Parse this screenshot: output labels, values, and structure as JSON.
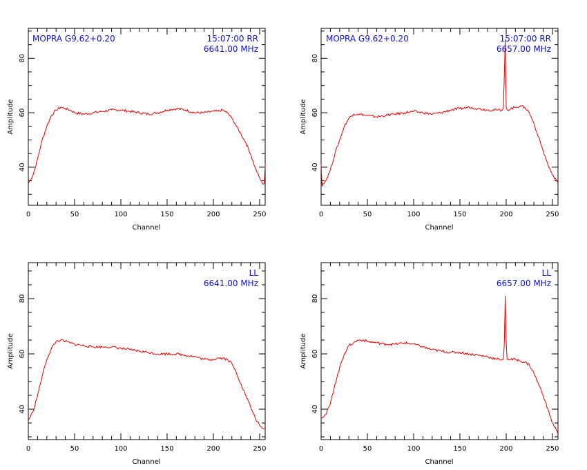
{
  "chart_data": [
    {
      "type": "line",
      "panel": "top-left",
      "xlabel": "Channel",
      "ylabel": "Amplitude",
      "xlim": [
        0,
        256
      ],
      "ylim": [
        26,
        91
      ],
      "xticks": [
        0,
        50,
        100,
        150,
        200,
        250
      ],
      "yticks": [
        40,
        60,
        80
      ],
      "annotations": {
        "source": "MOPRA G9.62+0.20",
        "time_pol": "15:07:00  RR",
        "freq": "6641.00 MHz"
      },
      "series": [
        {
          "color": "#e00000",
          "x": [
            0,
            5,
            10,
            15,
            20,
            25,
            30,
            35,
            40,
            45,
            50,
            60,
            70,
            80,
            90,
            100,
            110,
            120,
            130,
            140,
            150,
            160,
            170,
            180,
            190,
            200,
            205,
            210,
            215,
            220,
            225,
            230,
            235,
            240,
            245,
            250,
            253,
            255,
            256
          ],
          "y": [
            34,
            37,
            43,
            50,
            55,
            59,
            61,
            62,
            61.5,
            61,
            60,
            59.5,
            60,
            60.5,
            61,
            61,
            60.5,
            60,
            59.5,
            60,
            61,
            61.5,
            61,
            60,
            60,
            60.5,
            60.5,
            61,
            60,
            58,
            55,
            52,
            49,
            45,
            40,
            36,
            34,
            34,
            41
          ]
        }
      ]
    },
    {
      "type": "line",
      "panel": "top-right",
      "xlabel": "Channel",
      "ylabel": "Amplitude",
      "xlim": [
        0,
        256
      ],
      "ylim": [
        26,
        91
      ],
      "xticks": [
        0,
        50,
        100,
        150,
        200,
        250
      ],
      "yticks": [
        40,
        60,
        80
      ],
      "annotations": {
        "source": "MOPRA G9.62+0.20",
        "time_pol": "15:07:00  RR",
        "freq": "6657.00 MHz"
      },
      "series": [
        {
          "color": "#e00000",
          "x": [
            0,
            1,
            2,
            5,
            10,
            15,
            20,
            25,
            30,
            35,
            40,
            50,
            60,
            70,
            80,
            90,
            100,
            110,
            120,
            130,
            140,
            150,
            160,
            170,
            180,
            190,
            196,
            197,
            198,
            199,
            200,
            201,
            202,
            205,
            210,
            215,
            220,
            225,
            230,
            235,
            240,
            245,
            250,
            255,
            256
          ],
          "y": [
            41,
            33,
            34,
            35,
            39,
            45,
            50,
            55,
            58,
            59.5,
            59.5,
            59,
            58.5,
            59,
            59.5,
            60,
            60.5,
            60,
            59.5,
            60,
            61,
            61.5,
            62,
            61.5,
            61,
            61,
            61,
            62,
            74,
            87,
            62,
            61,
            61,
            61.5,
            62,
            62.5,
            62,
            60,
            56,
            51,
            46,
            41,
            37,
            35,
            34
          ]
        }
      ]
    },
    {
      "type": "line",
      "panel": "bottom-left",
      "xlabel": "Channel",
      "ylabel": "Amplitude",
      "xlim": [
        0,
        256
      ],
      "ylim": [
        29,
        93
      ],
      "xticks": [
        0,
        50,
        100,
        150,
        200,
        250
      ],
      "yticks": [
        40,
        60,
        80
      ],
      "annotations": {
        "time_pol": "LL",
        "freq": "6641.00 MHz"
      },
      "series": [
        {
          "color": "#e00000",
          "x": [
            0,
            5,
            10,
            15,
            20,
            25,
            30,
            35,
            40,
            45,
            50,
            60,
            70,
            80,
            90,
            100,
            110,
            120,
            130,
            140,
            150,
            160,
            170,
            180,
            190,
            200,
            205,
            210,
            215,
            220,
            225,
            230,
            235,
            240,
            245,
            250,
            253,
            255,
            256
          ],
          "y": [
            36,
            39,
            45,
            52,
            58,
            62,
            64.5,
            65,
            64.5,
            64,
            63.5,
            63,
            62.5,
            62.5,
            62.5,
            62,
            61.5,
            61,
            60.5,
            60,
            60,
            60,
            59.5,
            59,
            58,
            58,
            58.5,
            58.5,
            58,
            56.5,
            53,
            49,
            45,
            41,
            37,
            34,
            33,
            33,
            33
          ]
        }
      ]
    },
    {
      "type": "line",
      "panel": "bottom-right",
      "xlabel": "Channel",
      "ylabel": "Amplitude",
      "xlim": [
        0,
        256
      ],
      "ylim": [
        29,
        93
      ],
      "xticks": [
        0,
        50,
        100,
        150,
        200,
        250
      ],
      "yticks": [
        40,
        60,
        80
      ],
      "annotations": {
        "time_pol": "LL",
        "freq": "6657.00 MHz"
      },
      "series": [
        {
          "color": "#e00000",
          "x": [
            0,
            5,
            10,
            15,
            20,
            25,
            30,
            35,
            40,
            45,
            50,
            60,
            70,
            80,
            90,
            100,
            110,
            120,
            130,
            140,
            150,
            160,
            170,
            180,
            190,
            196,
            197,
            198,
            199,
            200,
            201,
            202,
            205,
            210,
            215,
            220,
            225,
            230,
            235,
            240,
            245,
            250,
            255,
            256
          ],
          "y": [
            37,
            38,
            42,
            49,
            55,
            60,
            63,
            64,
            65,
            65,
            64.5,
            64,
            63.5,
            63.5,
            64,
            63.5,
            62.5,
            61.5,
            61,
            60.5,
            60.5,
            60,
            59.5,
            59,
            58,
            58,
            58,
            64,
            81,
            64,
            58,
            58,
            58,
            58,
            57.5,
            57,
            56,
            53,
            49,
            45,
            40,
            35,
            32,
            31
          ]
        }
      ]
    }
  ]
}
